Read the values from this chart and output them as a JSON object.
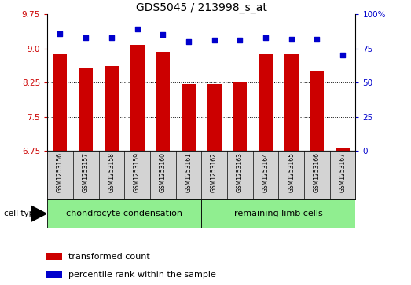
{
  "title": "GDS5045 / 213998_s_at",
  "samples": [
    "GSM1253156",
    "GSM1253157",
    "GSM1253158",
    "GSM1253159",
    "GSM1253160",
    "GSM1253161",
    "GSM1253162",
    "GSM1253163",
    "GSM1253164",
    "GSM1253165",
    "GSM1253166",
    "GSM1253167"
  ],
  "transformed_count": [
    8.87,
    8.58,
    8.62,
    9.08,
    8.93,
    8.22,
    8.22,
    8.28,
    8.87,
    8.87,
    8.5,
    6.82
  ],
  "percentile_rank": [
    86,
    83,
    83,
    89,
    85,
    80,
    81,
    81,
    83,
    82,
    82,
    70
  ],
  "group1_indices": [
    0,
    1,
    2,
    3,
    4,
    5
  ],
  "group2_indices": [
    6,
    7,
    8,
    9,
    10,
    11
  ],
  "group1_label": "chondrocyte condensation",
  "group2_label": "remaining limb cells",
  "group_color": "#90EE90",
  "bar_color": "#CC0000",
  "dot_color": "#0000CC",
  "ylim_left": [
    6.75,
    9.75
  ],
  "ylim_right": [
    0,
    100
  ],
  "yticks_left": [
    6.75,
    7.5,
    8.25,
    9.0,
    9.75
  ],
  "yticks_right": [
    0,
    25,
    50,
    75,
    100
  ],
  "ytick_labels_right": [
    "0",
    "25",
    "50",
    "75",
    "100%"
  ],
  "cell_type_label": "cell type",
  "legend_bar_label": "transformed count",
  "legend_dot_label": "percentile rank within the sample",
  "label_color_left": "#CC0000",
  "label_color_right": "#0000CC",
  "box_bg_color": "#d3d3d3",
  "bar_width": 0.55
}
